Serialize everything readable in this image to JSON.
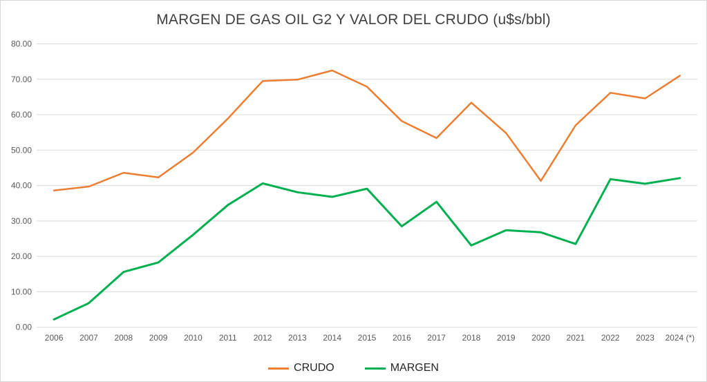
{
  "chart_data": {
    "type": "line",
    "title": "MARGEN DE GAS OIL G2 Y VALOR DEL CRUDO (u$s/bbl)",
    "categories": [
      "2006",
      "2007",
      "2008",
      "2009",
      "2010",
      "2011",
      "2012",
      "2013",
      "2014",
      "2015",
      "2016",
      "2017",
      "2018",
      "2019",
      "2020",
      "2021",
      "2022",
      "2023",
      "2024 (*)"
    ],
    "series": [
      {
        "name": "CRUDO",
        "color": "#ED7D31",
        "values": [
          38.6,
          39.7,
          43.6,
          42.3,
          49.3,
          58.9,
          69.5,
          69.9,
          72.5,
          67.9,
          58.2,
          53.4,
          63.4,
          54.8,
          41.3,
          57.0,
          66.2,
          64.6,
          71.0
        ]
      },
      {
        "name": "MARGEN",
        "color": "#00B050",
        "values": [
          2.2,
          6.8,
          15.6,
          18.3,
          26.1,
          34.5,
          40.6,
          38.1,
          36.8,
          39.1,
          28.5,
          35.4,
          23.1,
          27.4,
          26.8,
          23.5,
          41.8,
          40.5,
          42.1
        ]
      }
    ],
    "xlabel": "",
    "ylabel": "",
    "ylim": [
      0,
      80
    ],
    "ytick_step": 10,
    "ytick_decimals": 2,
    "grid": true,
    "legend_position": "bottom",
    "gridline_color": "#D9D9D9",
    "axis_label_color": "#595959"
  }
}
